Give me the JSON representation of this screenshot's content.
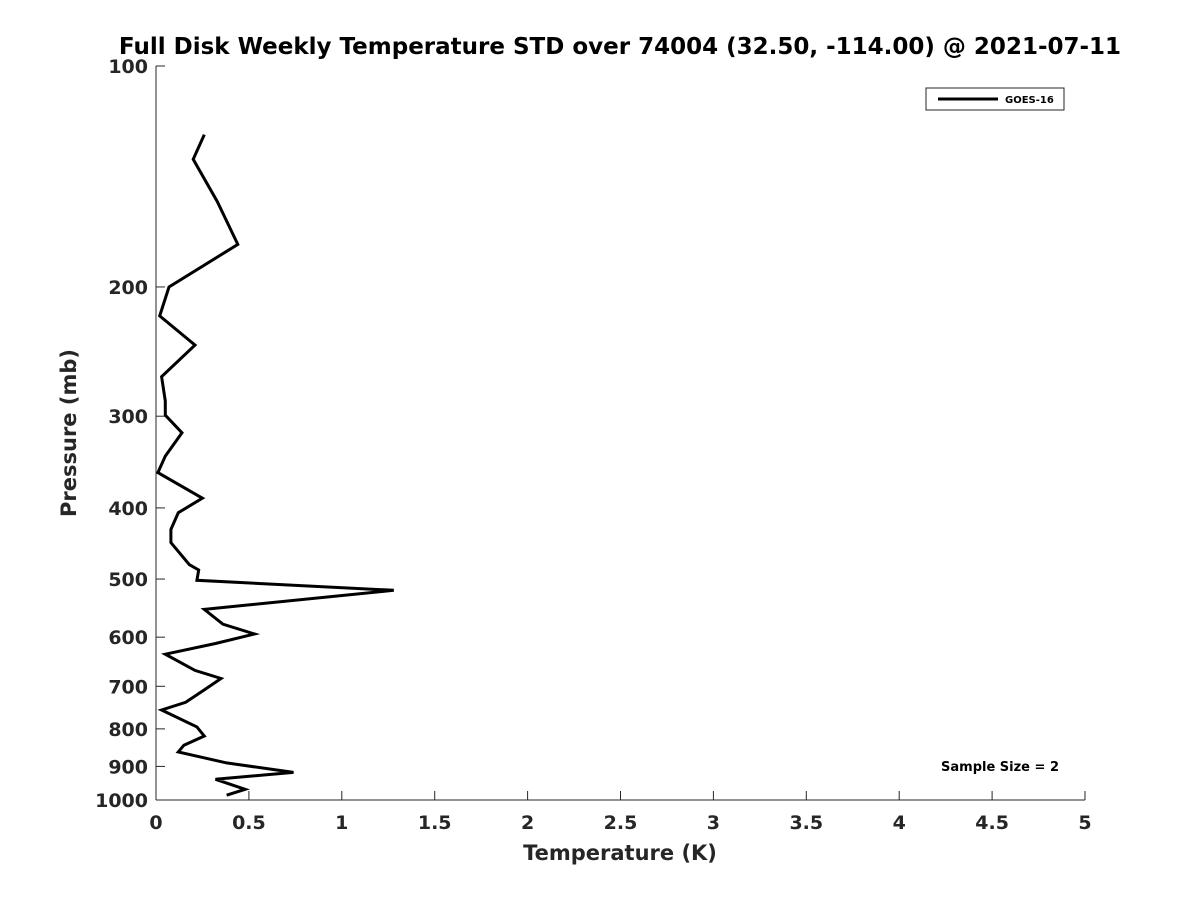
{
  "chart_data": {
    "type": "line",
    "title": "Full Disk Weekly Temperature STD over 74004 (32.50, -114.00) @ 2021-07-11",
    "xlabel": "Temperature (K)",
    "ylabel": "Pressure (mb)",
    "xlim": [
      0,
      5
    ],
    "ylim": [
      100,
      1000
    ],
    "y_scale": "log",
    "y_reversed": true,
    "x_ticks": [
      0,
      0.5,
      1,
      1.5,
      2,
      2.5,
      3,
      3.5,
      4,
      4.5,
      5
    ],
    "x_tick_labels": [
      "0",
      "0.5",
      "1",
      "1.5",
      "2",
      "2.5",
      "3",
      "3.5",
      "4",
      "4.5",
      "5"
    ],
    "y_ticks": [
      100,
      200,
      300,
      400,
      500,
      600,
      700,
      800,
      900,
      1000
    ],
    "y_tick_labels": [
      "100",
      "200",
      "300",
      "400",
      "500",
      "600",
      "700",
      "800",
      "900",
      "1000"
    ],
    "grid": false,
    "legend_position": "top-right",
    "annotation": "Sample Size = 2",
    "series": [
      {
        "name": "GOES-16",
        "color": "#000000",
        "points": [
          [
            0.26,
            124
          ],
          [
            0.2,
            134
          ],
          [
            0.33,
            153
          ],
          [
            0.44,
            175
          ],
          [
            0.07,
            200
          ],
          [
            0.02,
            219
          ],
          [
            0.21,
            240
          ],
          [
            0.03,
            265
          ],
          [
            0.05,
            286
          ],
          [
            0.05,
            299
          ],
          [
            0.14,
            316
          ],
          [
            0.05,
            340
          ],
          [
            0.01,
            358
          ],
          [
            0.25,
            388
          ],
          [
            0.12,
            406
          ],
          [
            0.08,
            428
          ],
          [
            0.08,
            446
          ],
          [
            0.18,
            478
          ],
          [
            0.23,
            486
          ],
          [
            0.22,
            502
          ],
          [
            1.28,
            518
          ],
          [
            0.26,
            550
          ],
          [
            0.36,
            576
          ],
          [
            0.53,
            594
          ],
          [
            0.32,
            612
          ],
          [
            0.05,
            633
          ],
          [
            0.21,
            666
          ],
          [
            0.35,
            683
          ],
          [
            0.26,
            708
          ],
          [
            0.16,
            736
          ],
          [
            0.03,
            754
          ],
          [
            0.22,
            795
          ],
          [
            0.26,
            818
          ],
          [
            0.15,
            842
          ],
          [
            0.12,
            860
          ],
          [
            0.38,
            890
          ],
          [
            0.74,
            917
          ],
          [
            0.32,
            937
          ],
          [
            0.48,
            967
          ],
          [
            0.38,
            985
          ]
        ]
      }
    ]
  }
}
